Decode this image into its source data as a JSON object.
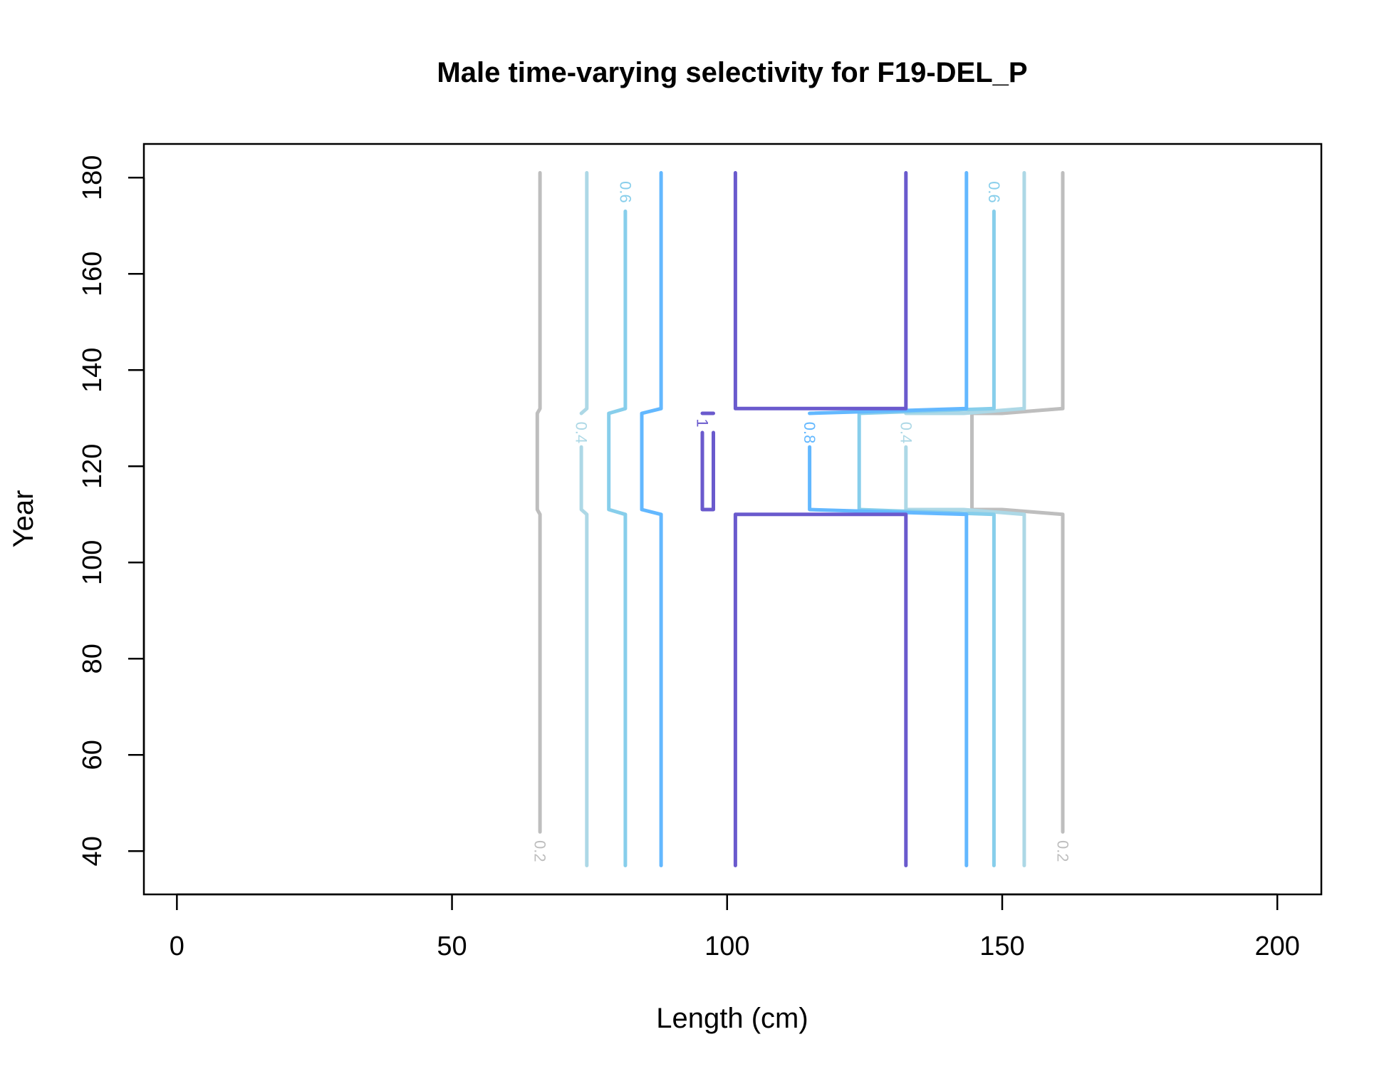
{
  "chart_data": {
    "type": "contour",
    "title": "Male time-varying selectivity for F19-DEL_P",
    "xlabel": "Length (cm)",
    "ylabel": "Year",
    "xlim": [
      -6,
      208
    ],
    "ylim": [
      31,
      187
    ],
    "x_ticks": [
      0,
      50,
      100,
      150,
      200
    ],
    "y_ticks": [
      40,
      60,
      80,
      100,
      120,
      140,
      160,
      180
    ],
    "legend": "none",
    "grid": false,
    "contours": [
      {
        "level": "0.2",
        "color": "#BEBEBE",
        "label": "0.2",
        "lines": [
          {
            "points": [
              [
                66,
                37
              ],
              [
                66,
                44
              ],
              [
                66,
                110
              ],
              [
                65.5,
                111
              ],
              [
                65.5,
                131
              ],
              [
                66,
                132
              ],
              [
                66,
                181
              ]
            ],
            "label_at": [
              66,
              40
            ],
            "gap": [
              37,
              44
            ]
          },
          {
            "points": [
              [
                161,
                37
              ],
              [
                161,
                44
              ],
              [
                161,
                110
              ],
              [
                150,
                111
              ],
              [
                144.5,
                111
              ],
              [
                144.5,
                131
              ],
              [
                150,
                131
              ],
              [
                161,
                132
              ],
              [
                161,
                181
              ]
            ],
            "label_at": [
              161,
              40
            ],
            "gap": [
              37,
              44
            ]
          }
        ]
      },
      {
        "level": "0.4",
        "color": "#ADD8E6",
        "label": "0.4",
        "lines": [
          {
            "points": [
              [
                74.5,
                37
              ],
              [
                74.5,
                110
              ],
              [
                73.5,
                111
              ],
              [
                73.5,
                124
              ],
              [
                73.5,
                131
              ],
              [
                74.5,
                132
              ],
              [
                74.5,
                181
              ]
            ],
            "label_at": [
              73.5,
              127
            ],
            "gap": [
              124,
              131
            ]
          },
          {
            "points": [
              [
                154,
                37
              ],
              [
                154,
                110
              ],
              [
                143,
                111
              ],
              [
                132.5,
                111
              ],
              [
                132.5,
                124
              ],
              [
                132.5,
                131
              ],
              [
                143,
                131
              ],
              [
                154,
                132
              ],
              [
                154,
                181
              ]
            ],
            "label_at": [
              132.5,
              127
            ],
            "gap": [
              124,
              131
            ]
          }
        ]
      },
      {
        "level": "0.6",
        "color": "#87CEEB",
        "label": "0.6",
        "lines": [
          {
            "points": [
              [
                81.5,
                37
              ],
              [
                81.5,
                110
              ],
              [
                78.5,
                111
              ],
              [
                78.5,
                131
              ],
              [
                81.5,
                132
              ],
              [
                81.5,
                173
              ],
              [
                81.5,
                181
              ]
            ],
            "label_at": [
              81.5,
              177
            ],
            "gap": [
              173,
              181
            ]
          },
          {
            "points": [
              [
                148.5,
                37
              ],
              [
                148.5,
                110
              ],
              [
                124,
                111
              ],
              [
                124,
                131
              ],
              [
                148.5,
                132
              ],
              [
                148.5,
                173
              ],
              [
                148.5,
                181
              ]
            ],
            "label_at": [
              148.5,
              177
            ],
            "gap": [
              173,
              181
            ]
          }
        ]
      },
      {
        "level": "0.8",
        "color": "#63B8FF",
        "label": "0.8",
        "lines": [
          {
            "points": [
              [
                88,
                37
              ],
              [
                88,
                110
              ],
              [
                84.5,
                111
              ],
              [
                84.5,
                131
              ],
              [
                88,
                132
              ],
              [
                88,
                181
              ]
            ]
          },
          {
            "points": [
              [
                143.5,
                37
              ],
              [
                143.5,
                110
              ],
              [
                115,
                111
              ],
              [
                115,
                124
              ],
              [
                115,
                131
              ],
              [
                143.5,
                132
              ],
              [
                143.5,
                181
              ]
            ],
            "label_at": [
              115,
              127
            ],
            "gap": [
              124,
              131
            ]
          }
        ]
      },
      {
        "level": "1",
        "color": "#6A5ACD",
        "label": "1",
        "lines": [
          {
            "points": [
              [
                101.5,
                37
              ],
              [
                101.5,
                110
              ],
              [
                132.5,
                110
              ],
              [
                132.5,
                37
              ]
            ]
          },
          {
            "points": [
              [
                101.5,
                181
              ],
              [
                101.5,
                132
              ],
              [
                132.5,
                132
              ],
              [
                132.5,
                181
              ]
            ]
          },
          {
            "points": [
              [
                95.5,
                127
              ],
              [
                95.5,
                111
              ],
              [
                97.5,
                111
              ],
              [
                97.5,
                131
              ],
              [
                95.5,
                131
              ]
            ],
            "label_at": [
              95.5,
              129
            ],
            "gap": [
              127,
              131
            ]
          }
        ]
      }
    ]
  }
}
